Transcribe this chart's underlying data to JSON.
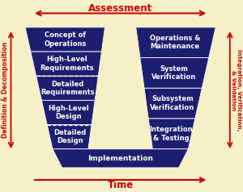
{
  "background_color": "#f5f0c8",
  "dark_blue": "#1e1e70",
  "white": "#ffffff",
  "red": "#cc0000",
  "title_assessment": "Assessment",
  "title_time": "Time",
  "label_left": "Definition & Decomposition",
  "label_right": "Integration, Verification,\n& Validation",
  "left_boxes": [
    "Concept of\nOperations",
    "High-Level\nRequirements",
    "Detailed\nRequirements",
    "High-Level\nDesign",
    "Detailed\nDesign"
  ],
  "right_boxes": [
    "Operations &\nMaintenance",
    "System\nVerification",
    "Subsystem\nVerification",
    "Integration\n& Testing"
  ],
  "bottom_box": "Implementation",
  "font_size_box": 6.0,
  "font_size_axis": 8.5,
  "font_size_side": 5.5
}
